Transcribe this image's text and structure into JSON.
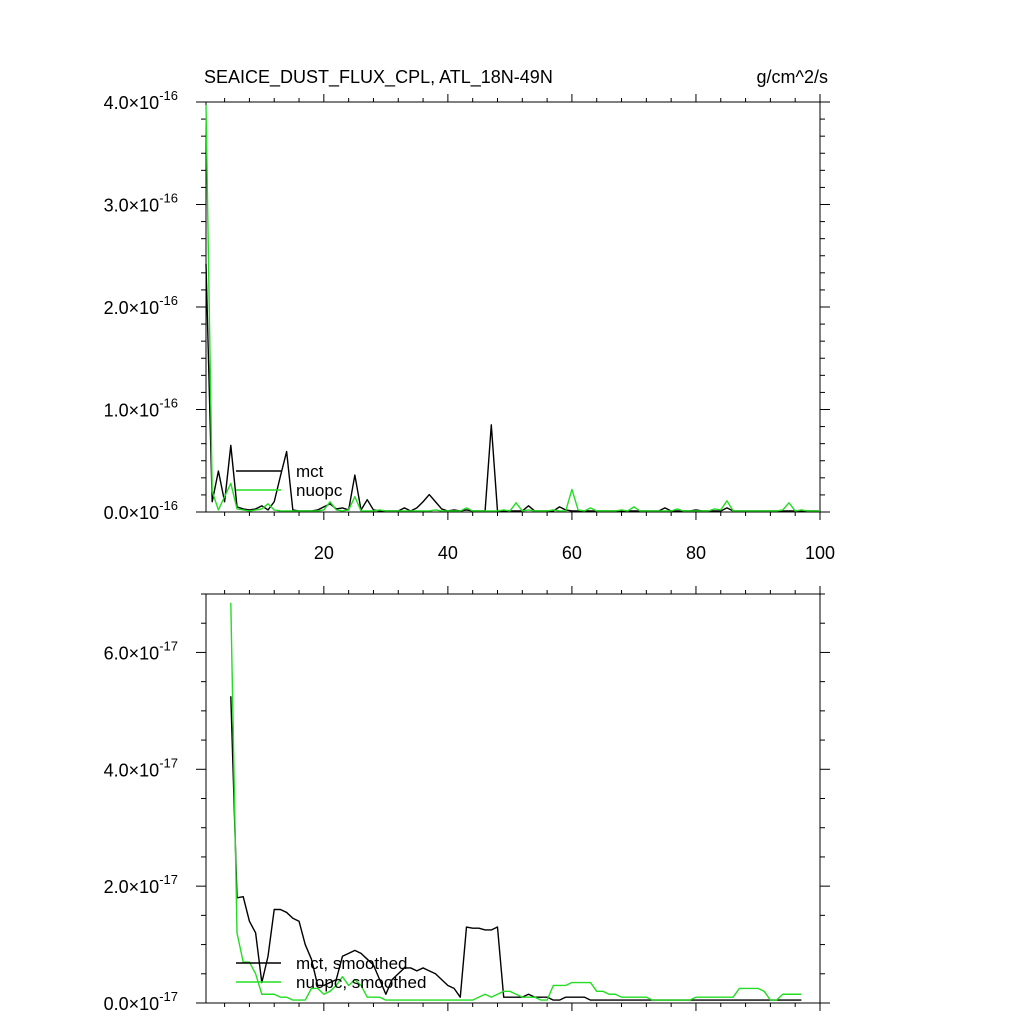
{
  "title": "SEAICE_DUST_FLUX_CPL, ATL_18N-49N",
  "units": "g/cm^2/s",
  "colors": {
    "mct": "#000000",
    "nuopc": "#22dd22",
    "axis": "#000000",
    "background": "#ffffff"
  },
  "chart_data": [
    {
      "type": "line",
      "title": "SEAICE_DUST_FLUX_CPL, ATL_18N-49N",
      "units_label": "g/cm^2/s",
      "xlim": [
        1,
        100
      ],
      "ylim": [
        0,
        4e-16
      ],
      "x_ticks": [
        20,
        40,
        60,
        80,
        100
      ],
      "y_ticks": [
        0,
        1e-16,
        2e-16,
        3e-16,
        4e-16
      ],
      "y_tick_labels": [
        {
          "mant": "0.0",
          "exp": "-16"
        },
        {
          "mant": "1.0",
          "exp": "-16"
        },
        {
          "mant": "2.0",
          "exp": "-16"
        },
        {
          "mant": "3.0",
          "exp": "-16"
        },
        {
          "mant": "4.0",
          "exp": "-16"
        }
      ],
      "legend_placement": "lower-left",
      "series": [
        {
          "name": "mct",
          "color": "#000000",
          "x": [
            1,
            2,
            3,
            4,
            5,
            6,
            7,
            8,
            9,
            10,
            11,
            12,
            13,
            14,
            15,
            16,
            17,
            18,
            19,
            20,
            21,
            22,
            23,
            24,
            25,
            26,
            27,
            28,
            29,
            30,
            31,
            32,
            33,
            34,
            35,
            36,
            37,
            38,
            39,
            40,
            41,
            42,
            43,
            44,
            45,
            46,
            47,
            48,
            49,
            50,
            51,
            52,
            53,
            54,
            55,
            56,
            57,
            58,
            59,
            60,
            61,
            62,
            63,
            64,
            65,
            66,
            67,
            68,
            69,
            70,
            71,
            72,
            73,
            74,
            75,
            76,
            77,
            78,
            79,
            80,
            81,
            82,
            83,
            84,
            85,
            86,
            87,
            88,
            89,
            90,
            91,
            92,
            93,
            94,
            95,
            96,
            97,
            98,
            99,
            100
          ],
          "y": [
            2.42e-16,
            1e-17,
            4e-17,
            1e-17,
            6.5e-17,
            5e-18,
            3e-18,
            2e-18,
            3e-18,
            6e-18,
            2e-18,
            1e-17,
            3.5e-17,
            5.9e-17,
            2e-18,
            1e-18,
            1e-18,
            1e-18,
            2e-18,
            5e-18,
            8e-18,
            3e-18,
            4e-18,
            2e-18,
            3.6e-17,
            2e-18,
            1.2e-17,
            2e-18,
            1e-18,
            1e-18,
            1e-18,
            1e-18,
            4e-18,
            1e-18,
            4e-18,
            1e-17,
            1.7e-17,
            1e-17,
            3e-18,
            1e-18,
            2e-18,
            1e-18,
            2e-18,
            1e-18,
            1e-18,
            1e-18,
            8.5e-17,
            1e-18,
            1e-18,
            1e-18,
            1e-18,
            1e-18,
            6e-18,
            1e-18,
            1e-18,
            1e-18,
            1e-18,
            5e-18,
            2e-18,
            1e-18,
            1e-18,
            1e-18,
            1e-18,
            1e-18,
            1e-18,
            1e-18,
            1e-18,
            1e-18,
            1e-18,
            1e-18,
            1e-18,
            1e-18,
            1e-18,
            1e-18,
            4e-18,
            1e-18,
            1e-18,
            1e-18,
            1e-18,
            2e-18,
            1e-18,
            1e-18,
            1e-18,
            1e-18,
            4e-18,
            1e-18,
            1e-18,
            1e-18,
            1e-18,
            1e-18,
            1e-18,
            1e-18,
            1e-18,
            1e-18,
            1e-18,
            1e-18,
            1e-18,
            1e-18,
            1e-18,
            1e-18
          ]
        },
        {
          "name": "nuopc",
          "color": "#22dd22",
          "x": [
            1,
            2,
            3,
            4,
            5,
            6,
            7,
            8,
            9,
            10,
            11,
            12,
            13,
            14,
            15,
            16,
            17,
            18,
            19,
            20,
            21,
            22,
            23,
            24,
            25,
            26,
            27,
            28,
            29,
            30,
            31,
            32,
            33,
            34,
            35,
            36,
            37,
            38,
            39,
            40,
            41,
            42,
            43,
            44,
            45,
            46,
            47,
            48,
            49,
            50,
            51,
            52,
            53,
            54,
            55,
            56,
            57,
            58,
            59,
            60,
            61,
            62,
            63,
            64,
            65,
            66,
            67,
            68,
            69,
            70,
            71,
            72,
            73,
            74,
            75,
            76,
            77,
            78,
            79,
            80,
            81,
            82,
            83,
            84,
            85,
            86,
            87,
            88,
            89,
            90,
            91,
            92,
            93,
            94,
            95,
            96,
            97,
            98,
            99,
            100
          ],
          "y": [
            3.97e-16,
            2e-17,
            2e-18,
            1.5e-17,
            2.8e-17,
            3e-18,
            2e-18,
            1e-18,
            2e-18,
            3e-18,
            8e-18,
            2e-18,
            1e-18,
            1e-18,
            1e-18,
            1e-18,
            1e-18,
            1e-18,
            1e-18,
            2e-18,
            1e-17,
            2e-18,
            1e-18,
            2e-18,
            1.5e-17,
            1e-18,
            1e-18,
            1e-18,
            2e-18,
            1e-18,
            1e-18,
            1e-18,
            1e-18,
            1e-18,
            1e-18,
            1e-18,
            1e-18,
            2e-18,
            1e-18,
            1e-18,
            1e-18,
            1e-18,
            4e-18,
            1e-18,
            1e-18,
            1e-18,
            1e-18,
            1e-18,
            2e-18,
            1e-18,
            9e-18,
            1e-18,
            2e-18,
            1e-18,
            1e-18,
            1e-18,
            2e-18,
            1e-18,
            1e-18,
            2.2e-17,
            2e-18,
            1e-18,
            4e-18,
            1e-18,
            1e-18,
            1e-18,
            1e-18,
            2e-18,
            1e-18,
            5e-18,
            1e-18,
            1e-18,
            1e-18,
            1e-18,
            1e-18,
            1e-18,
            3e-18,
            1e-18,
            1e-18,
            1e-18,
            1e-18,
            1e-18,
            3e-18,
            2e-18,
            1.1e-17,
            1e-18,
            1e-18,
            1e-18,
            1e-18,
            1e-18,
            1e-18,
            1e-18,
            1e-18,
            2e-18,
            9e-18,
            1e-18,
            2e-18,
            1e-18,
            1e-18,
            1e-18
          ]
        }
      ]
    },
    {
      "type": "line",
      "title": "",
      "xlim": [
        1,
        100
      ],
      "ylim": [
        0,
        7e-17
      ],
      "x_ticks": [
        20,
        40,
        60,
        80,
        100
      ],
      "y_ticks": [
        0,
        2e-17,
        4e-17,
        6e-17
      ],
      "y_tick_labels": [
        {
          "mant": "0.0",
          "exp": "-17"
        },
        {
          "mant": "2.0",
          "exp": "-17"
        },
        {
          "mant": "4.0",
          "exp": "-17"
        },
        {
          "mant": "6.0",
          "exp": "-17"
        }
      ],
      "legend_placement": "lower-left",
      "series": [
        {
          "name": "mct, smoothed",
          "color": "#000000",
          "x": [
            5,
            6,
            7,
            8,
            9,
            10,
            11,
            12,
            13,
            14,
            15,
            16,
            17,
            18,
            19,
            20,
            21,
            22,
            23,
            24,
            25,
            26,
            27,
            28,
            29,
            30,
            31,
            32,
            33,
            34,
            35,
            36,
            37,
            38,
            39,
            40,
            41,
            42,
            43,
            44,
            45,
            46,
            47,
            48,
            49,
            50,
            51,
            52,
            53,
            54,
            55,
            56,
            57,
            58,
            59,
            60,
            61,
            62,
            63,
            64,
            65,
            66,
            67,
            68,
            69,
            70,
            71,
            72,
            73,
            74,
            75,
            76,
            77,
            78,
            79,
            80,
            81,
            82,
            83,
            84,
            85,
            86,
            87,
            88,
            89,
            90,
            91,
            92,
            93,
            94,
            95,
            96,
            97
          ],
          "y": [
            5.25e-17,
            1.8e-17,
            1.82e-17,
            1.4e-17,
            1.2e-17,
            3.5e-18,
            8e-18,
            1.6e-17,
            1.6e-17,
            1.55e-17,
            1.45e-17,
            1.4e-17,
            1e-17,
            7.5e-18,
            3e-18,
            3e-18,
            3.5e-18,
            4e-18,
            8e-18,
            8.5e-18,
            9e-18,
            8.5e-18,
            7.5e-18,
            6.5e-18,
            4e-18,
            1.5e-18,
            4e-18,
            5e-18,
            6e-18,
            6e-18,
            5.5e-18,
            6e-18,
            5.5e-18,
            5e-18,
            4e-18,
            3e-18,
            2.5e-18,
            1e-18,
            1.3e-17,
            1.28e-17,
            1.28e-17,
            1.25e-17,
            1.25e-17,
            1.3e-17,
            1e-18,
            1e-18,
            1e-18,
            1e-18,
            1.5e-18,
            1e-18,
            1e-18,
            1e-18,
            5e-19,
            5e-19,
            1e-18,
            1e-18,
            1e-18,
            1e-18,
            5e-19,
            5e-19,
            5e-19,
            5e-19,
            5e-19,
            5e-19,
            5e-19,
            5e-19,
            5e-19,
            5e-19,
            5e-19,
            5e-19,
            5e-19,
            5e-19,
            5e-19,
            5e-19,
            5e-19,
            5e-19,
            5e-19,
            5e-19,
            5e-19,
            5e-19,
            5e-19,
            5e-19,
            5e-19,
            5e-19,
            5e-19,
            5e-19,
            5e-19,
            5e-19,
            5e-19,
            5e-19,
            5e-19,
            5e-19,
            5e-19
          ]
        },
        {
          "name": "nuopc, smoothed",
          "color": "#22dd22",
          "x": [
            5,
            6,
            7,
            8,
            9,
            10,
            11,
            12,
            13,
            14,
            15,
            16,
            17,
            18,
            19,
            20,
            21,
            22,
            23,
            24,
            25,
            26,
            27,
            28,
            29,
            30,
            31,
            32,
            33,
            34,
            35,
            36,
            37,
            38,
            39,
            40,
            41,
            42,
            43,
            44,
            45,
            46,
            47,
            48,
            49,
            50,
            51,
            52,
            53,
            54,
            55,
            56,
            57,
            58,
            59,
            60,
            61,
            62,
            63,
            64,
            65,
            66,
            67,
            68,
            69,
            70,
            71,
            72,
            73,
            74,
            75,
            76,
            77,
            78,
            79,
            80,
            81,
            82,
            83,
            84,
            85,
            86,
            87,
            88,
            89,
            90,
            91,
            92,
            93,
            94,
            95,
            96,
            97
          ],
          "y": [
            6.85e-17,
            1.2e-17,
            7e-18,
            7e-18,
            5e-18,
            1.5e-18,
            1.5e-18,
            1.5e-18,
            1e-18,
            1e-18,
            5e-19,
            5e-19,
            5e-19,
            2.5e-18,
            2.5e-18,
            1.5e-18,
            2e-18,
            3e-18,
            4.5e-18,
            3e-18,
            4e-18,
            3e-18,
            1e-18,
            1e-18,
            1e-18,
            5e-19,
            5e-19,
            5e-19,
            5e-19,
            5e-19,
            5e-19,
            5e-19,
            5e-19,
            5e-19,
            5e-19,
            5e-19,
            5e-19,
            5e-19,
            5e-19,
            5e-19,
            1e-18,
            1.5e-18,
            1e-18,
            1.5e-18,
            2e-18,
            2e-18,
            1.5e-18,
            1e-18,
            1e-18,
            1e-18,
            5e-19,
            5e-19,
            3e-18,
            3e-18,
            3e-18,
            3.5e-18,
            3.5e-18,
            3.5e-18,
            3.5e-18,
            2e-18,
            2e-18,
            1.5e-18,
            1.5e-18,
            1e-18,
            1e-18,
            1e-18,
            1e-18,
            1e-18,
            5e-19,
            5e-19,
            5e-19,
            5e-19,
            5e-19,
            5e-19,
            5e-19,
            1e-18,
            1e-18,
            1e-18,
            1e-18,
            1e-18,
            1e-18,
            1e-18,
            2.5e-18,
            2.5e-18,
            2.5e-18,
            2.5e-18,
            2e-18,
            5e-19,
            5e-19,
            1.5e-18,
            1.5e-18,
            1.5e-18,
            1.5e-18
          ]
        }
      ]
    }
  ]
}
